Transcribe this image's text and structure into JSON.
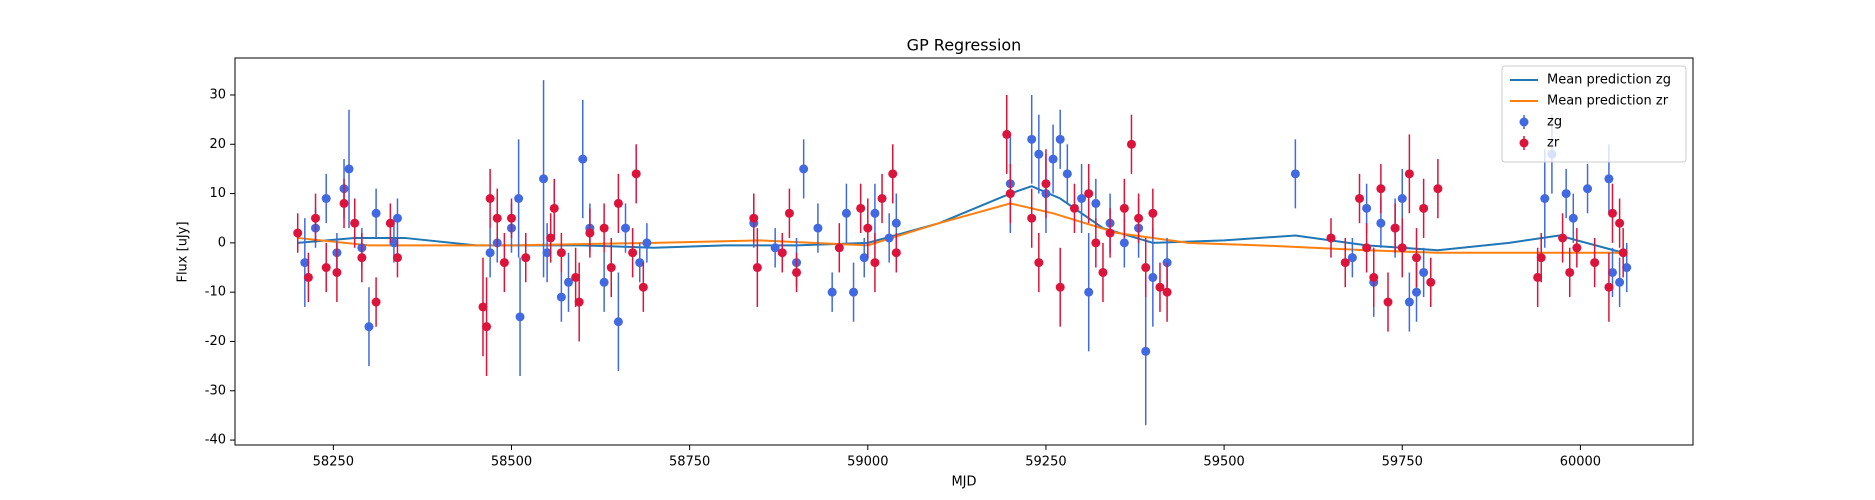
{
  "chart_data": {
    "type": "line",
    "title": "GP Regression",
    "x_label": "MJD",
    "y_label": "Flux [uJy]",
    "xlim": [
      58112,
      60158
    ],
    "ylim": [
      -41,
      37.5
    ],
    "xticks": [
      58250,
      58500,
      58750,
      59000,
      59250,
      59500,
      59750,
      60000
    ],
    "yticks": [
      -40,
      -30,
      -20,
      -10,
      0,
      10,
      20,
      30
    ],
    "legend": "upper right",
    "series": [
      {
        "name": "Mean prediction zg",
        "color": "#1f77b4",
        "x": [
          58200,
          58280,
          58350,
          58450,
          58600,
          58700,
          58800,
          58900,
          59000,
          59100,
          59200,
          59230,
          59270,
          59330,
          59400,
          59500,
          59600,
          59700,
          59800,
          59900,
          59970,
          60060
        ],
        "values": [
          0,
          1,
          1,
          -0.5,
          -0.5,
          -1,
          -0.5,
          -0.5,
          0,
          4,
          10,
          11.5,
          9,
          3,
          0,
          0.5,
          1.5,
          -0.5,
          -1.5,
          0,
          1.5,
          -2
        ]
      },
      {
        "name": "Mean prediction zr",
        "color": "#ff7f0e",
        "x": [
          58200,
          58300,
          58500,
          58700,
          58850,
          59000,
          59100,
          59200,
          59260,
          59350,
          59450,
          59550,
          59700,
          59800,
          59950,
          60060
        ],
        "values": [
          1,
          -0.5,
          -0.5,
          0,
          0.5,
          -0.5,
          4,
          8,
          6,
          2,
          0,
          -0.5,
          -1.5,
          -2,
          -2,
          -2
        ]
      },
      {
        "name": "zg",
        "color": "#4169e1",
        "x": [
          58210,
          58225,
          58240,
          58255,
          58265,
          58272,
          58290,
          58300,
          58310,
          58340,
          58335,
          58470,
          58480,
          58500,
          58510,
          58512,
          58545,
          58550,
          58570,
          58580,
          58600,
          58610,
          58630,
          58650,
          58660,
          58680,
          58690,
          58840,
          58870,
          58900,
          58910,
          58930,
          58950,
          58970,
          58980,
          58995,
          59010,
          59030,
          59040,
          59200,
          59230,
          59240,
          59250,
          59260,
          59270,
          59280,
          59300,
          59310,
          59320,
          59340,
          59360,
          59380,
          59390,
          59400,
          59420,
          59600,
          59680,
          59700,
          59710,
          59720,
          59740,
          59750,
          59760,
          59770,
          59780,
          59950,
          59960,
          59980,
          59990,
          60010,
          60040,
          60045,
          60055,
          60065
        ],
        "values": [
          -4,
          3,
          9,
          -2,
          11,
          15,
          -1,
          -17,
          6,
          5,
          0,
          -2,
          0,
          3,
          9,
          -15,
          13,
          -2,
          -11,
          -8,
          17,
          3,
          -8,
          -16,
          3,
          -4,
          0,
          4,
          -1,
          -4,
          15,
          3,
          -10,
          6,
          -10,
          -3,
          6,
          1,
          4,
          12,
          21,
          18,
          10,
          17,
          21,
          14,
          9,
          -10,
          8,
          4,
          0,
          3,
          -22,
          -7,
          -4,
          14,
          -3,
          7,
          -8,
          4,
          3,
          9,
          -12,
          -10,
          -6,
          9,
          18,
          10,
          5,
          11,
          13,
          -6,
          -8,
          -5
        ],
        "errors": [
          9,
          4,
          5,
          4,
          6,
          12,
          4,
          8,
          5,
          4,
          4,
          5,
          4,
          5,
          12,
          12,
          20,
          6,
          5,
          6,
          12,
          5,
          6,
          10,
          5,
          4,
          4,
          5,
          4,
          5,
          6,
          5,
          4,
          6,
          6,
          4,
          6,
          5,
          6,
          10,
          9,
          8,
          8,
          7,
          6,
          6,
          7,
          12,
          5,
          6,
          5,
          6,
          15,
          10,
          5,
          7,
          4,
          5,
          7,
          5,
          6,
          6,
          6,
          6,
          5,
          10,
          8,
          5,
          5,
          5,
          7,
          5,
          5,
          5
        ]
      },
      {
        "name": "zr",
        "color": "#dc143c",
        "x": [
          58200,
          58215,
          58225,
          58240,
          58255,
          58265,
          58280,
          58290,
          58310,
          58330,
          58340,
          58460,
          58465,
          58470,
          58480,
          58490,
          58500,
          58520,
          58555,
          58560,
          58570,
          58590,
          58595,
          58610,
          58630,
          58640,
          58650,
          58670,
          58675,
          58685,
          58840,
          58845,
          58880,
          58890,
          58900,
          58960,
          58990,
          59000,
          59010,
          59020,
          59035,
          59040,
          59195,
          59200,
          59230,
          59240,
          59250,
          59270,
          59290,
          59310,
          59320,
          59330,
          59340,
          59360,
          59370,
          59380,
          59390,
          59400,
          59410,
          59420,
          59650,
          59670,
          59690,
          59700,
          59710,
          59720,
          59730,
          59740,
          59750,
          59760,
          59770,
          59780,
          59790,
          59800,
          59940,
          59945,
          59975,
          59985,
          59995,
          60020,
          60040,
          60045,
          60055,
          60060
        ],
        "values": [
          2,
          -7,
          5,
          -5,
          -6,
          8,
          4,
          -3,
          -12,
          4,
          -3,
          -13,
          -17,
          9,
          5,
          -4,
          5,
          -3,
          1,
          7,
          -2,
          -7,
          -12,
          2,
          3,
          -5,
          8,
          -2,
          14,
          -9,
          5,
          -5,
          -2,
          6,
          -6,
          -1,
          7,
          3,
          -4,
          9,
          14,
          -2,
          22,
          10,
          5,
          -4,
          12,
          -9,
          7,
          10,
          0,
          -6,
          2,
          7,
          20,
          5,
          -5,
          6,
          -9,
          -10,
          1,
          -4,
          9,
          -1,
          -7,
          11,
          -12,
          3,
          -1,
          14,
          -3,
          7,
          -8,
          11,
          -7,
          -3,
          1,
          -6,
          -1,
          -4,
          -9,
          6,
          4,
          -2
        ],
        "errors": [
          4,
          5,
          5,
          5,
          6,
          5,
          5,
          5,
          5,
          4,
          4,
          10,
          10,
          6,
          6,
          6,
          4,
          5,
          5,
          6,
          4,
          6,
          8,
          5,
          5,
          6,
          6,
          5,
          6,
          5,
          5,
          8,
          4,
          5,
          4,
          5,
          5,
          6,
          6,
          5,
          6,
          4,
          8,
          6,
          6,
          6,
          7,
          8,
          5,
          6,
          5,
          6,
          5,
          6,
          6,
          5,
          6,
          5,
          5,
          6,
          4,
          5,
          5,
          5,
          6,
          5,
          6,
          5,
          6,
          8,
          6,
          6,
          5,
          6,
          6,
          5,
          5,
          5,
          4,
          5,
          7,
          6,
          5,
          5
        ]
      }
    ]
  }
}
